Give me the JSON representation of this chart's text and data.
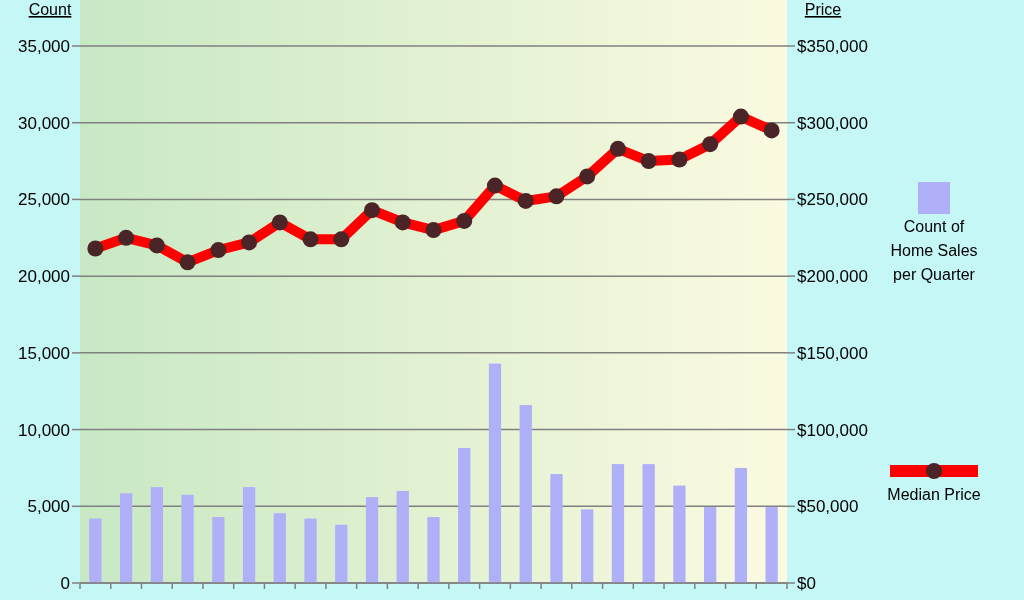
{
  "chart_data": {
    "type": "bar",
    "ylabel": "Count",
    "y2label": "Price",
    "categories": [
      null,
      null,
      null,
      null,
      null,
      null,
      null,
      null,
      null,
      null,
      null,
      null,
      null,
      null,
      null,
      null,
      null,
      null,
      null,
      null,
      null,
      null,
      null
    ],
    "series": [
      {
        "name": "Count of Home Sales per Quarter",
        "color": "#b0b0f8",
        "values": [
          4200,
          5850,
          6250,
          5750,
          4300,
          6250,
          4550,
          4200,
          3800,
          5600,
          6000,
          4300,
          8800,
          14300,
          11600,
          7100,
          4800,
          7750,
          7750,
          6350,
          4950,
          7500,
          4950
        ]
      },
      {
        "name": "Median Price",
        "type": "line",
        "axis": "y2",
        "color": "#ff0000",
        "values": [
          218000,
          225000,
          220000,
          209000,
          217000,
          222000,
          235000,
          224000,
          224000,
          243000,
          235000,
          230000,
          236000,
          259000,
          249000,
          252000,
          265000,
          283000,
          275000,
          276000,
          286000,
          304000,
          295000
        ]
      }
    ],
    "ylim": [
      0,
      35000
    ],
    "yticks": [
      0,
      {
        "value": 5000,
        "label": "5,000"
      },
      {
        "value": 10000,
        "label": "10,000"
      },
      {
        "value": 15000,
        "label": "15,000"
      },
      {
        "value": 20000,
        "label": "20,000"
      },
      {
        "value": 25000,
        "label": "25,000"
      },
      {
        "value": 30000,
        "label": "30,000"
      },
      {
        "value": 35000,
        "label": "35,000"
      }
    ],
    "y2lim": [
      0,
      350000
    ],
    "y2ticks": [
      {
        "value": 0,
        "label": "$0"
      },
      {
        "value": 50000,
        "label": "$50,000"
      },
      {
        "value": 100000,
        "label": "$100,000"
      },
      {
        "value": 150000,
        "label": "$150,000"
      },
      {
        "value": 200000,
        "label": "$200,000"
      },
      {
        "value": 250000,
        "label": "$250,000"
      },
      {
        "value": 300000,
        "label": "$300,000"
      },
      {
        "value": 350000,
        "label": "$350,000"
      }
    ],
    "grid": "y",
    "legend": "right",
    "marker": "circle"
  }
}
